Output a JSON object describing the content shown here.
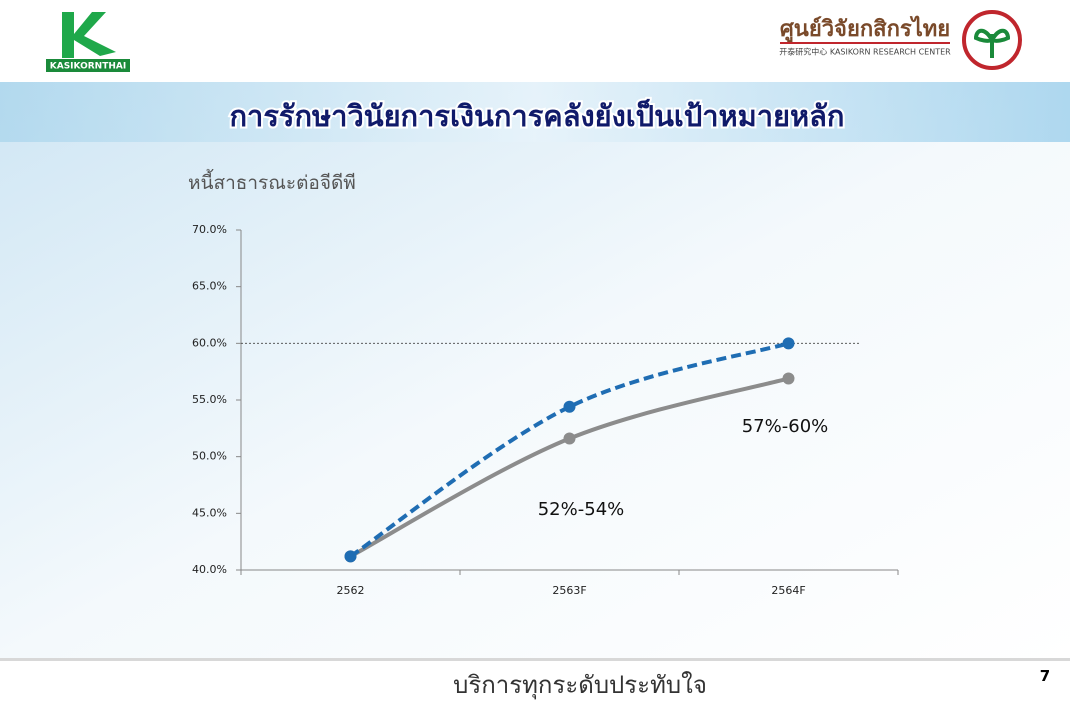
{
  "header": {
    "left_logo": "KASIKORNTHAI",
    "right_logo": "ศูนย์วิจัยกสิกรไทย",
    "right_logo_sub": "开泰研究中心 KASIKORN RESEARCH CENTER"
  },
  "chart_data": {
    "type": "line",
    "title": "การรักษาวินัยการเงินการคลังยังเป็นเป้าหมายหลัก",
    "subtitle": "หนี้สาธารณะต่อจีดีพี",
    "categories": [
      "2562",
      "2563F",
      "2564F"
    ],
    "series": [
      {
        "color": "#8c8c8c",
        "dash": false,
        "values": [
          41.2,
          51.6,
          56.9
        ]
      },
      {
        "color": "#1f6db3",
        "dash": true,
        "values": [
          41.2,
          54.4,
          60.0
        ]
      }
    ],
    "ylim": [
      40,
      70
    ],
    "yticks": [
      {
        "value": 40,
        "label": "40.0%"
      },
      {
        "value": 45,
        "label": "45.0%"
      },
      {
        "value": 50,
        "label": "50.0%"
      },
      {
        "value": 55,
        "label": "55.0%"
      },
      {
        "value": 60,
        "label": "60.0%"
      },
      {
        "value": 65,
        "label": "65.0%"
      },
      {
        "value": 70,
        "label": "70.0%"
      }
    ],
    "reference_line": 60,
    "annotations": [
      "52%-54%",
      "57%-60%"
    ]
  },
  "footer": {
    "slogan": "บริการทุกระดับประทับใจ",
    "page": "7"
  }
}
